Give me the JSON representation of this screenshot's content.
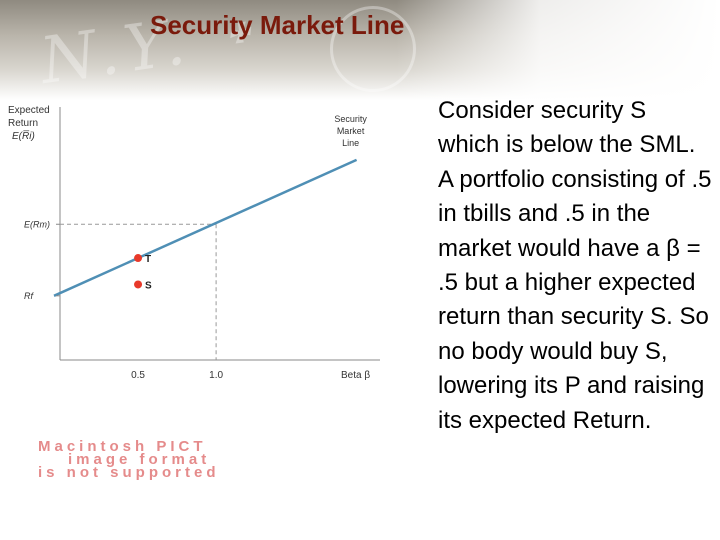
{
  "slide": {
    "title": "Security Market Line",
    "body_text": "Consider security S which is below the SML.  A portfolio consisting of .5 in tbills and .5 in the market would have a β = .5 but a higher expected return than security S.  So no body would buy S, lowering its P and raising its expected Return.",
    "pict_placeholder": [
      "Macintosh PICT",
      "image format",
      "is not supported"
    ]
  },
  "chart_data": {
    "type": "line",
    "ylabel": [
      "Expected",
      "Return",
      "E(R̅i)"
    ],
    "xlabel": "Beta β",
    "x_ticks": [
      {
        "value": 0.5,
        "label": "0.5"
      },
      {
        "value": 1.0,
        "label": "1.0"
      }
    ],
    "y_ticks": [
      {
        "key": "rf",
        "label": "Rf"
      },
      {
        "key": "erm",
        "label": "E(Rm)"
      }
    ],
    "series": [
      {
        "name": "Security Market Line",
        "label_lines": [
          "Security",
          "Market",
          "Line"
        ],
        "x": [
          0,
          1.9
        ],
        "y": [
          0,
          1.8
        ]
      }
    ],
    "points": [
      {
        "label": "T",
        "x": 0.5,
        "y": 0.5
      },
      {
        "label": "S",
        "x": 0.5,
        "y": 0.15
      }
    ],
    "xlim": [
      0,
      2.05
    ],
    "ylim": [
      -0.85,
      2.5
    ],
    "colors": {
      "line": "#4f8fb5",
      "points": "#e8392a",
      "axis": "#8a8a8a"
    }
  }
}
